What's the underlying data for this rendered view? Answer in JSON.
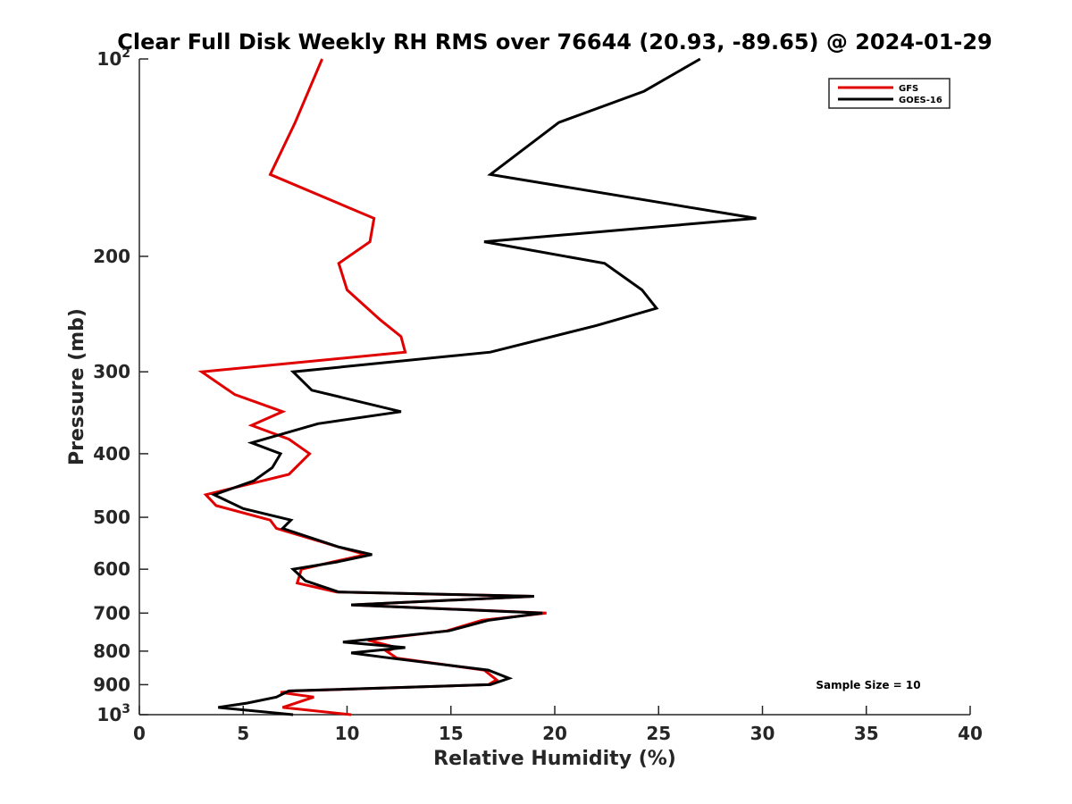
{
  "chart_data": {
    "type": "line",
    "title": "Clear Full Disk Weekly RH RMS over 76644 (20.93, -89.65) @ 2024-01-29",
    "xlabel": "Relative Humidity (%)",
    "ylabel": "Pressure (mb)",
    "xlim": [
      0,
      40
    ],
    "ylim": [
      100,
      1000
    ],
    "yscale": "log",
    "y_reversed": true,
    "x_ticks": [
      0,
      5,
      10,
      15,
      20,
      25,
      30,
      35,
      40
    ],
    "x_tick_labels": [
      "0",
      "5",
      "10",
      "15",
      "20",
      "25",
      "30",
      "35",
      "40"
    ],
    "y_ticks": [
      {
        "value": 100,
        "base": "10",
        "exp": "2"
      },
      {
        "value": 200,
        "label": "200"
      },
      {
        "value": 300,
        "label": "300"
      },
      {
        "value": 400,
        "label": "400"
      },
      {
        "value": 500,
        "label": "500"
      },
      {
        "value": 600,
        "label": "600"
      },
      {
        "value": 700,
        "label": "700"
      },
      {
        "value": 800,
        "label": "800"
      },
      {
        "value": 900,
        "label": "900"
      },
      {
        "value": 1000,
        "base": "10",
        "exp": "3"
      }
    ],
    "legend_position": "top-right",
    "annotation": "Sample Size = 10",
    "series": [
      {
        "name": "GFS",
        "color": "#e00000",
        "points": [
          [
            8.8,
            100
          ],
          [
            7.5,
            125
          ],
          [
            6.3,
            150
          ],
          [
            11.3,
            175
          ],
          [
            11.1,
            190
          ],
          [
            9.6,
            205
          ],
          [
            10.0,
            225
          ],
          [
            11.6,
            250
          ],
          [
            12.6,
            265
          ],
          [
            12.8,
            280
          ],
          [
            3.0,
            300
          ],
          [
            4.6,
            325
          ],
          [
            6.9,
            345
          ],
          [
            5.4,
            362
          ],
          [
            7.2,
            380
          ],
          [
            8.2,
            400
          ],
          [
            7.2,
            430
          ],
          [
            3.2,
            462
          ],
          [
            3.7,
            480
          ],
          [
            6.3,
            505
          ],
          [
            6.6,
            520
          ],
          [
            9.6,
            555
          ],
          [
            10.9,
            570
          ],
          [
            9.3,
            585
          ],
          [
            7.8,
            600
          ],
          [
            7.6,
            630
          ],
          [
            9.5,
            650
          ],
          [
            19.0,
            660
          ],
          [
            10.2,
            680
          ],
          [
            19.6,
            700
          ],
          [
            16.5,
            718
          ],
          [
            14.8,
            745
          ],
          [
            11.0,
            770
          ],
          [
            12.4,
            790
          ],
          [
            11.9,
            800
          ],
          [
            12.4,
            820
          ],
          [
            16.6,
            855
          ],
          [
            17.2,
            885
          ],
          [
            16.8,
            900
          ],
          [
            7.5,
            920
          ],
          [
            6.8,
            925
          ],
          [
            8.4,
            940
          ],
          [
            6.9,
            975
          ],
          [
            10.2,
            1000
          ]
        ]
      },
      {
        "name": "GOES-16",
        "color": "#000000",
        "points": [
          [
            27.0,
            100
          ],
          [
            24.3,
            112
          ],
          [
            20.2,
            125
          ],
          [
            16.9,
            150
          ],
          [
            29.7,
            175
          ],
          [
            16.6,
            190
          ],
          [
            22.4,
            205
          ],
          [
            24.2,
            225
          ],
          [
            24.9,
            240
          ],
          [
            22.0,
            255
          ],
          [
            16.9,
            280
          ],
          [
            7.4,
            300
          ],
          [
            8.3,
            320
          ],
          [
            12.6,
            345
          ],
          [
            8.6,
            360
          ],
          [
            5.4,
            385
          ],
          [
            6.8,
            400
          ],
          [
            6.4,
            420
          ],
          [
            5.5,
            440
          ],
          [
            3.6,
            462
          ],
          [
            5.0,
            485
          ],
          [
            7.3,
            505
          ],
          [
            6.9,
            520
          ],
          [
            9.6,
            555
          ],
          [
            11.2,
            570
          ],
          [
            9.5,
            585
          ],
          [
            7.4,
            600
          ],
          [
            8.0,
            625
          ],
          [
            9.6,
            650
          ],
          [
            19.0,
            660
          ],
          [
            10.2,
            680
          ],
          [
            19.4,
            700
          ],
          [
            16.8,
            718
          ],
          [
            14.9,
            745
          ],
          [
            9.8,
            775
          ],
          [
            12.8,
            790
          ],
          [
            10.2,
            805
          ],
          [
            12.1,
            820
          ],
          [
            16.8,
            855
          ],
          [
            17.8,
            880
          ],
          [
            16.9,
            900
          ],
          [
            7.2,
            920
          ],
          [
            6.6,
            940
          ],
          [
            5.2,
            960
          ],
          [
            3.8,
            975
          ],
          [
            7.4,
            1000
          ]
        ]
      }
    ]
  }
}
